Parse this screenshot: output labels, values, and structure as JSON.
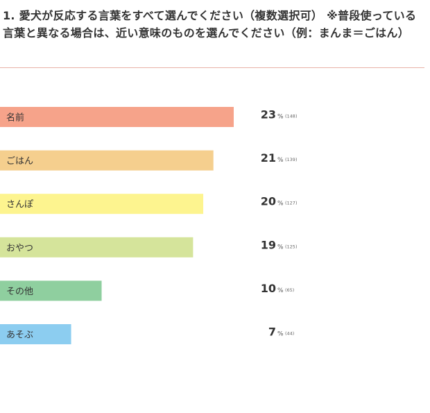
{
  "question": {
    "title": "1. 愛犬が反応する言葉をすべて選んでください（複数選択可） ※普段使っている言葉と異なる場合は、近い意味のものを選んでください（例：まんま＝ごはん）"
  },
  "chart_data": {
    "type": "bar",
    "orientation": "horizontal",
    "categories": [
      "名前",
      "ごはん",
      "さんぽ",
      "おやつ",
      "その他",
      "あそぶ"
    ],
    "values": [
      23,
      21,
      20,
      19,
      10,
      7
    ],
    "value_suffix": "%",
    "counts": [
      "(148)",
      "(139)",
      "(127)",
      "(125)",
      "(65)",
      "(44)"
    ],
    "colors": [
      "#f6a38a",
      "#f5cf8e",
      "#fdf48f",
      "#d5e49b",
      "#8fcf9f",
      "#8ccdf0"
    ],
    "xlim": [
      0,
      100
    ],
    "grid": false,
    "legend": "none"
  }
}
